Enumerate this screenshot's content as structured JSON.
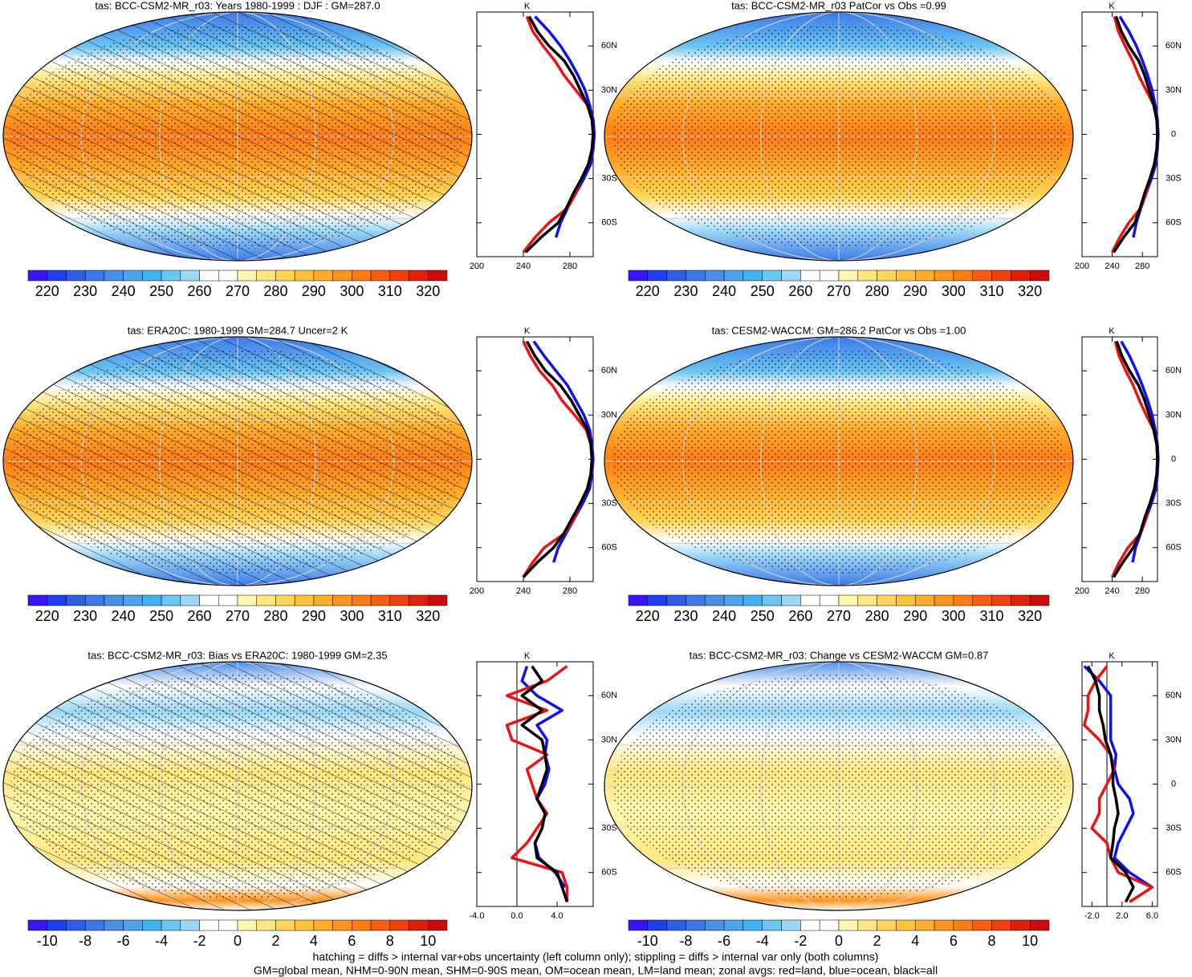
{
  "chart_data": [
    {
      "type": "map-profile",
      "title": "tas: BCC-CSM2-MR_r03: Years 1980-1999 : DJF : GM=287.0",
      "map": {
        "style": "temperature",
        "hatching": true,
        "stippling": true
      },
      "colorbar": {
        "labels": [
          220,
          230,
          240,
          250,
          260,
          270,
          280,
          290,
          300,
          310,
          320
        ],
        "colors": [
          "#3a14f5",
          "#1e3ef0",
          "#2e5ee6",
          "#3c78e8",
          "#4a8ee8",
          "#4da4ec",
          "#40b4f0",
          "#6cc6f2",
          "#9cd8f5",
          "#ffffff",
          "#ffffff",
          "#fff6b0",
          "#ffe680",
          "#ffd558",
          "#ffc33a",
          "#ffad28",
          "#ff951c",
          "#ff7c14",
          "#fb5c12",
          "#f0400f",
          "#e0200d",
          "#cc0c0c"
        ]
      },
      "profile": {
        "unit": "K",
        "xlim": [
          200,
          300
        ],
        "xticks": [
          200,
          240,
          280
        ],
        "ylim": [
          -83,
          83
        ],
        "yticks": [
          {
            "value": 60,
            "label": "60N"
          },
          {
            "value": 30,
            "label": "30N"
          },
          0,
          {
            "value": -30,
            "label": "30S"
          },
          {
            "value": -60,
            "label": "60S"
          }
        ],
        "zero_line": false,
        "lat": [
          80,
          70,
          60,
          50,
          40,
          30,
          20,
          10,
          0,
          -10,
          -20,
          -30,
          -40,
          -50,
          -60,
          -70,
          -80
        ],
        "series": [
          {
            "color": "#1111ee",
            "values": [
              250,
              262,
              272,
              280,
              287,
              293,
              297,
              300,
              301,
              300,
              298,
              292,
              285,
              278,
              272,
              268,
              null
            ]
          },
          {
            "color": "#ee1111",
            "values": [
              243,
              248,
              257,
              267,
              275,
              285,
              295,
              299,
              300,
              299,
              296,
              290,
              285,
              278,
              262,
              250,
              240
            ]
          },
          {
            "color": "#000000",
            "values": [
              245,
              252,
              262,
              275,
              283,
              289,
              295,
              299,
              300,
              299,
              296,
              290,
              283,
              277,
              270,
              255,
              242
            ]
          }
        ]
      }
    },
    {
      "type": "map-profile",
      "title": "tas: BCC-CSM2-MR_r03 PatCor vs Obs =0.99",
      "map": {
        "style": "temperature",
        "hatching": false,
        "stippling": true
      },
      "colorbar": {
        "labels": [
          220,
          230,
          240,
          250,
          260,
          270,
          280,
          290,
          300,
          310,
          320
        ],
        "colors": [
          "#3a14f5",
          "#1e3ef0",
          "#2e5ee6",
          "#3c78e8",
          "#4a8ee8",
          "#4da4ec",
          "#40b4f0",
          "#6cc6f2",
          "#9cd8f5",
          "#ffffff",
          "#ffffff",
          "#fff6b0",
          "#ffe680",
          "#ffd558",
          "#ffc33a",
          "#ffad28",
          "#ff951c",
          "#ff7c14",
          "#fb5c12",
          "#f0400f",
          "#e0200d",
          "#cc0c0c"
        ]
      },
      "profile": {
        "unit": "K",
        "xlim": [
          200,
          300
        ],
        "xticks": [
          200,
          240,
          280
        ],
        "ylim": [
          -83,
          83
        ],
        "yticks": [
          {
            "value": 60,
            "label": "60N"
          },
          {
            "value": 30,
            "label": "30N"
          },
          0,
          {
            "value": -30,
            "label": "30S"
          },
          {
            "value": -60,
            "label": "60S"
          }
        ],
        "zero_line": false,
        "lat": [
          80,
          70,
          60,
          50,
          40,
          30,
          20,
          10,
          0,
          -10,
          -20,
          -30,
          -40,
          -50,
          -60,
          -70,
          -80
        ],
        "series": [
          {
            "color": "#1111ee",
            "values": [
              250,
              262,
              272,
              280,
              287,
              293,
              297,
              300,
              301,
              300,
              298,
              292,
              285,
              278,
              272,
              268,
              null
            ]
          },
          {
            "color": "#ee1111",
            "values": [
              243,
              248,
              257,
              267,
              275,
              285,
              295,
              299,
              300,
              299,
              296,
              290,
              285,
              278,
              262,
              250,
              240
            ]
          },
          {
            "color": "#000000",
            "values": [
              245,
              252,
              262,
              275,
              283,
              289,
              295,
              299,
              300,
              299,
              296,
              290,
              283,
              277,
              270,
              255,
              242
            ]
          }
        ]
      }
    },
    {
      "type": "map-profile",
      "title": "tas: ERA20C: 1980-1999 GM=284.7 Uncer=2 K",
      "map": {
        "style": "temperature",
        "hatching": true,
        "stippling": true
      },
      "colorbar": {
        "labels": [
          220,
          230,
          240,
          250,
          260,
          270,
          280,
          290,
          300,
          310,
          320
        ],
        "colors": [
          "#3a14f5",
          "#1e3ef0",
          "#2e5ee6",
          "#3c78e8",
          "#4a8ee8",
          "#4da4ec",
          "#40b4f0",
          "#6cc6f2",
          "#9cd8f5",
          "#ffffff",
          "#ffffff",
          "#fff6b0",
          "#ffe680",
          "#ffd558",
          "#ffc33a",
          "#ffad28",
          "#ff951c",
          "#ff7c14",
          "#fb5c12",
          "#f0400f",
          "#e0200d",
          "#cc0c0c"
        ]
      },
      "profile": {
        "unit": "K",
        "xlim": [
          200,
          300
        ],
        "xticks": [
          200,
          240,
          280
        ],
        "ylim": [
          -83,
          83
        ],
        "yticks": [
          {
            "value": 60,
            "label": "60N"
          },
          {
            "value": 30,
            "label": "30N"
          },
          0,
          {
            "value": -30,
            "label": "30S"
          },
          {
            "value": -60,
            "label": "60S"
          }
        ],
        "zero_line": false,
        "lat": [
          80,
          70,
          60,
          50,
          40,
          30,
          20,
          10,
          0,
          -10,
          -20,
          -30,
          -40,
          -50,
          -60,
          -70,
          -80
        ],
        "series": [
          {
            "color": "#1111ee",
            "values": [
              249,
              258,
              268,
              278,
              285,
              292,
              297,
              299,
              300,
              299,
              297,
              291,
              284,
              277,
              270,
              266,
              null
            ]
          },
          {
            "color": "#ee1111",
            "values": [
              240,
              246,
              254,
              265,
              273,
              284,
              294,
              298,
              299,
              298,
              295,
              289,
              284,
              276,
              258,
              248,
              240
            ]
          },
          {
            "color": "#000000",
            "values": [
              243,
              250,
              259,
              272,
              281,
              288,
              295,
              298,
              299,
              298,
              295,
              289,
              282,
              275,
              266,
              252,
              240
            ]
          }
        ]
      }
    },
    {
      "type": "map-profile",
      "title": "tas: CESM2-WACCM: GM=286.2 PatCor vs Obs =1.00",
      "map": {
        "style": "temperature",
        "hatching": false,
        "stippling": true
      },
      "colorbar": {
        "labels": [
          220,
          230,
          240,
          250,
          260,
          270,
          280,
          290,
          300,
          310,
          320
        ],
        "colors": [
          "#3a14f5",
          "#1e3ef0",
          "#2e5ee6",
          "#3c78e8",
          "#4a8ee8",
          "#4da4ec",
          "#40b4f0",
          "#6cc6f2",
          "#9cd8f5",
          "#ffffff",
          "#ffffff",
          "#fff6b0",
          "#ffe680",
          "#ffd558",
          "#ffc33a",
          "#ffad28",
          "#ff951c",
          "#ff7c14",
          "#fb5c12",
          "#f0400f",
          "#e0200d",
          "#cc0c0c"
        ]
      },
      "profile": {
        "unit": "K",
        "xlim": [
          200,
          300
        ],
        "xticks": [
          200,
          240,
          280
        ],
        "ylim": [
          -83,
          83
        ],
        "yticks": [
          {
            "value": 60,
            "label": "60N"
          },
          {
            "value": 30,
            "label": "30N"
          },
          0,
          {
            "value": -30,
            "label": "30S"
          },
          {
            "value": -60,
            "label": "60S"
          }
        ],
        "zero_line": false,
        "lat": [
          80,
          70,
          60,
          50,
          40,
          30,
          20,
          10,
          0,
          -10,
          -20,
          -30,
          -40,
          -50,
          -60,
          -70,
          -80
        ],
        "series": [
          {
            "color": "#1111ee",
            "values": [
              252,
              263,
              272,
              280,
              287,
              293,
              297,
              300,
              301,
              300,
              298,
              292,
              285,
              278,
              271,
              267,
              null
            ]
          },
          {
            "color": "#ee1111",
            "values": [
              244,
              249,
              258,
              268,
              276,
              285,
              295,
              299,
              300,
              299,
              296,
              290,
              285,
              278,
              261,
              249,
              240
            ]
          },
          {
            "color": "#000000",
            "values": [
              246,
              253,
              263,
              275,
              283,
              289,
              295,
              299,
              300,
              299,
              296,
              290,
              283,
              277,
              268,
              254,
              242
            ]
          }
        ]
      }
    },
    {
      "type": "map-profile",
      "title": "tas: BCC-CSM2-MR_r03: Bias vs ERA20C: 1980-1999 GM=2.35",
      "map": {
        "style": "difference",
        "hatching": true,
        "stippling": true
      },
      "colorbar": {
        "labels": [
          -10,
          -8,
          -6,
          -4,
          -2,
          0,
          2,
          4,
          6,
          8,
          10
        ],
        "colors": [
          "#3a14f5",
          "#1e3ef0",
          "#2e5ee6",
          "#3c78e8",
          "#4a8ee8",
          "#4da4ec",
          "#40b4f0",
          "#6cc6f2",
          "#9cd8f5",
          "#ffffff",
          "#ffffff",
          "#fff6b0",
          "#ffe680",
          "#ffd558",
          "#ffc33a",
          "#ffad28",
          "#ff951c",
          "#ff7c14",
          "#fb5c12",
          "#f0400f",
          "#e0200d",
          "#cc0c0c"
        ]
      },
      "profile": {
        "unit": "K",
        "xlim": [
          -4,
          7.6
        ],
        "xticks": [
          {
            "value": -4,
            "label": "-4.0"
          },
          {
            "value": 0,
            "label": "0.0"
          },
          {
            "value": 4,
            "label": "4.0"
          }
        ],
        "ylim": [
          -83,
          83
        ],
        "yticks": [
          {
            "value": 60,
            "label": "60N"
          },
          {
            "value": 30,
            "label": "30N"
          },
          0,
          {
            "value": -30,
            "label": "30S"
          },
          {
            "value": -60,
            "label": "60S"
          }
        ],
        "zero_line": true,
        "lat": [
          80,
          70,
          60,
          50,
          40,
          30,
          20,
          10,
          0,
          -10,
          -20,
          -30,
          -40,
          -50,
          -60,
          -70,
          -80
        ],
        "series": [
          {
            "color": "#1111ee",
            "values": [
              1,
              0.5,
              2,
              4.5,
              2,
              3,
              2.8,
              3.2,
              2.8,
              2,
              2.8,
              2.5,
              1.8,
              2.2,
              3.8,
              4.8,
              null
            ]
          },
          {
            "color": "#ee1111",
            "values": [
              5,
              3,
              -1,
              3,
              -1,
              -0.5,
              3,
              1,
              1.5,
              2,
              3,
              2,
              1,
              -0.5,
              4.5,
              5,
              5
            ]
          },
          {
            "color": "#000000",
            "values": [
              1.5,
              2.5,
              0.5,
              2.5,
              0.5,
              2.5,
              2.8,
              3,
              2.5,
              2,
              2.8,
              2.5,
              1.8,
              2,
              4,
              4.5,
              5
            ]
          }
        ]
      }
    },
    {
      "type": "map-profile",
      "title": "tas: BCC-CSM2-MR_r03: Change vs CESM2-WACCM GM=0.87",
      "map": {
        "style": "difference",
        "hatching": false,
        "stippling": true
      },
      "colorbar": {
        "labels": [
          -10,
          -8,
          -6,
          -4,
          -2,
          0,
          2,
          4,
          6,
          8,
          10
        ],
        "colors": [
          "#3a14f5",
          "#1e3ef0",
          "#2e5ee6",
          "#3c78e8",
          "#4a8ee8",
          "#4da4ec",
          "#40b4f0",
          "#6cc6f2",
          "#9cd8f5",
          "#ffffff",
          "#ffffff",
          "#fff6b0",
          "#ffe680",
          "#ffd558",
          "#ffc33a",
          "#ffad28",
          "#ff951c",
          "#ff7c14",
          "#fb5c12",
          "#f0400f",
          "#e0200d",
          "#cc0c0c"
        ]
      },
      "profile": {
        "unit": "K",
        "xlim": [
          -3.3,
          6.7
        ],
        "xticks": [
          {
            "value": -2,
            "label": "-2.0"
          },
          {
            "value": 2,
            "label": "2.0"
          },
          {
            "value": 6,
            "label": "6.0"
          }
        ],
        "ylim": [
          -83,
          83
        ],
        "yticks": [
          {
            "value": 60,
            "label": "60N"
          },
          {
            "value": 30,
            "label": "30N"
          },
          0,
          {
            "value": -30,
            "label": "30S"
          },
          {
            "value": -60,
            "label": "60S"
          }
        ],
        "zero_line": true,
        "lat": [
          80,
          70,
          60,
          50,
          40,
          30,
          20,
          10,
          0,
          -10,
          -20,
          -30,
          -40,
          -50,
          -60,
          -70,
          -80
        ],
        "series": [
          {
            "color": "#1111ee",
            "values": [
              -3,
              -1,
              0.5,
              0.5,
              0.5,
              0.5,
              1.2,
              1,
              1.5,
              3,
              3.5,
              2.5,
              1.5,
              1,
              3,
              6,
              null
            ]
          },
          {
            "color": "#ee1111",
            "values": [
              0,
              -1.5,
              -2.5,
              -2.5,
              -3,
              -1,
              0.5,
              1,
              0,
              -1,
              -1,
              -2,
              0,
              0.5,
              1.5,
              6,
              3
            ]
          },
          {
            "color": "#000000",
            "values": [
              -2.5,
              -1.5,
              -1,
              -1,
              -0.5,
              -0.2,
              0.5,
              0.8,
              0.8,
              1.2,
              1.5,
              1,
              0.8,
              0.5,
              2.5,
              3.5,
              2.5
            ]
          }
        ]
      }
    }
  ],
  "notes": [
    "hatching = diffs > internal var+obs uncertainty (left column only); stippling = diffs > internal var only (both columns)",
    "GM=global mean, NHM=0-90N mean, SHM=0-90S mean, OM=ocean mean, LM=land mean; zonal avgs: red=land, blue=ocean, black=all"
  ]
}
